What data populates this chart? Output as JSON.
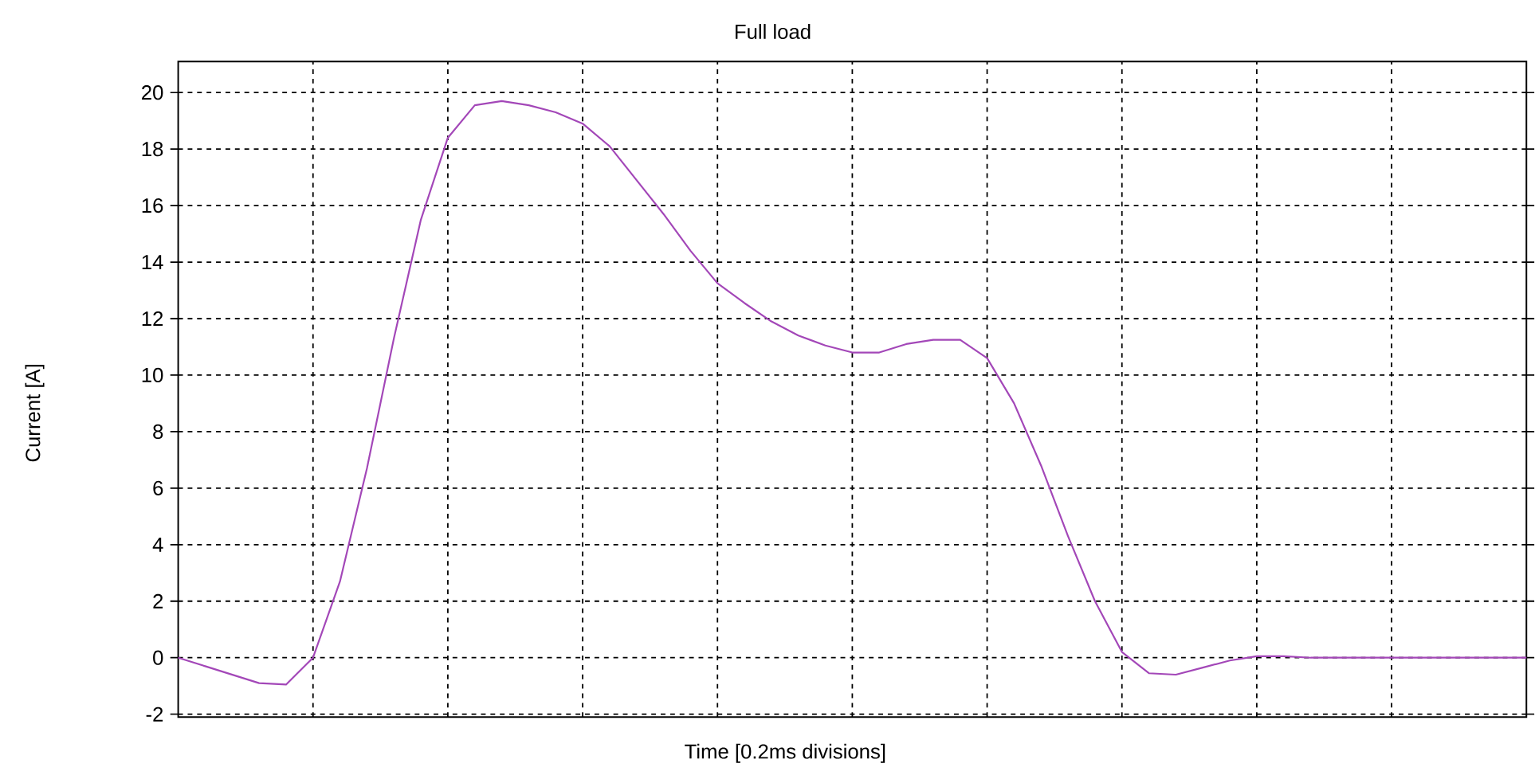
{
  "chart_data": {
    "type": "line",
    "title": "Full load",
    "xlabel": "Time [0.2ms divisions]",
    "ylabel": "Current [A]",
    "categories": [
      null,
      null,
      null,
      null,
      null,
      null,
      null,
      null,
      null,
      null,
      null,
      null,
      null,
      null,
      null,
      null,
      null,
      null,
      null,
      null,
      null,
      null,
      null,
      null,
      null,
      null,
      null,
      null,
      null,
      null,
      null,
      null,
      null,
      null,
      null,
      null,
      null,
      null,
      null,
      null,
      null,
      null,
      null,
      null,
      null,
      null,
      null,
      null,
      null,
      null,
      null
    ],
    "series": [
      {
        "color": "#a347b8",
        "values": [
          0,
          -0.3,
          -0.6,
          -0.9,
          -0.95,
          0,
          2.7,
          6.7,
          11.3,
          15.5,
          18.4,
          19.55,
          19.7,
          19.55,
          19.3,
          18.9,
          18.1,
          16.9,
          15.7,
          14.4,
          13.25,
          12.55,
          11.9,
          11.4,
          11.05,
          10.8,
          10.8,
          11.1,
          11.25,
          11.25,
          10.6,
          9.0,
          6.8,
          4.3,
          2.0,
          0.2,
          -0.55,
          -0.6,
          -0.35,
          -0.1,
          0.05,
          0.05,
          0,
          0,
          0,
          0,
          0,
          0,
          0,
          0,
          0
        ]
      }
    ],
    "ylim": [
      -2.1,
      21.1
    ],
    "yticks": [
      -2,
      0,
      2,
      4,
      6,
      8,
      10,
      12,
      14,
      16,
      18,
      20
    ],
    "grid": true
  }
}
